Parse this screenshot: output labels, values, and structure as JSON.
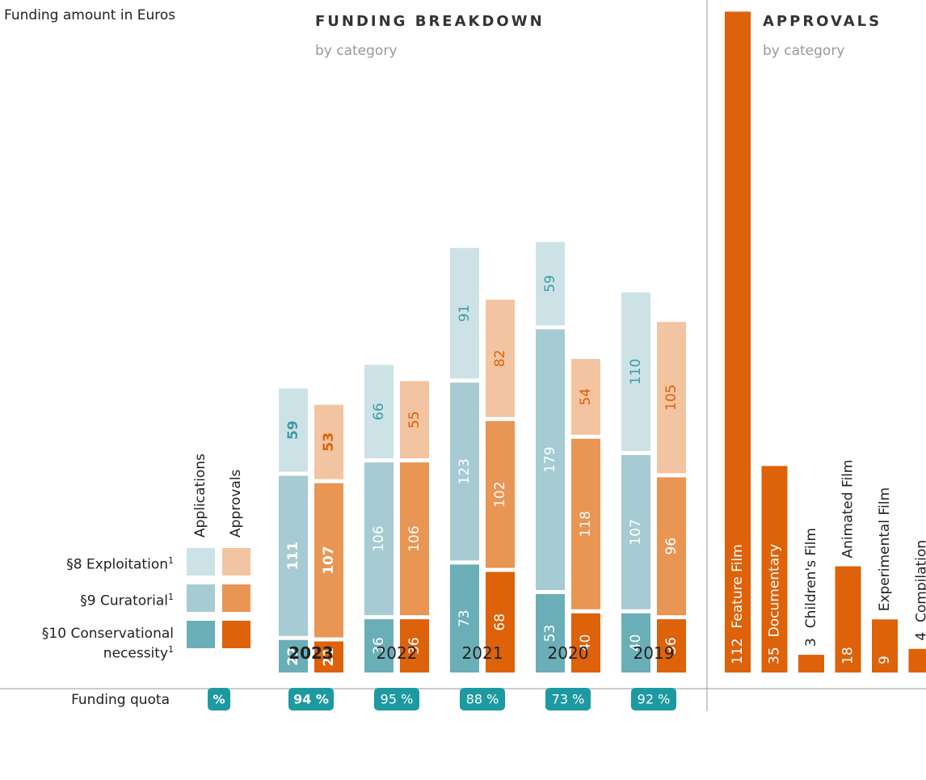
{
  "chart_data": [
    {
      "type": "stacked_bar",
      "y_label": "Funding amount in Euros",
      "title": "FUNDING BREAKDOWN",
      "subtitle": "by category",
      "categories": [
        "2023",
        "2022",
        "2021",
        "2020",
        "2019"
      ],
      "levels": [
        {
          "name": "§10 Conservational necessity",
          "note": "1"
        },
        {
          "name": "§9 Curatorial",
          "note": "1"
        },
        {
          "name": "§8 Exploitation",
          "note": "1"
        }
      ],
      "series": [
        {
          "name": "Applications",
          "colors": [
            "#6aafb8",
            "#a6cbd2",
            "#cde2e6"
          ],
          "text_color": "#3b9ba6",
          "stacks": [
            [
              22,
              36,
              73,
              53,
              40
            ],
            [
              111,
              106,
              123,
              179,
              107
            ],
            [
              59,
              66,
              91,
              59,
              110
            ]
          ]
        },
        {
          "name": "Approvals",
          "colors": [
            "#dd6209",
            "#e99554",
            "#f3c4a1"
          ],
          "text_color": "#dd6209",
          "stacks": [
            [
              21,
              36,
              68,
              40,
              36
            ],
            [
              107,
              106,
              102,
              118,
              96
            ],
            [
              53,
              55,
              82,
              54,
              105
            ]
          ]
        }
      ],
      "quota": {
        "label": "Funding quota",
        "unit": "%",
        "color": "#1d9aa1",
        "values": [
          94,
          95,
          88,
          73,
          92
        ],
        "value_labels": [
          "94 %",
          "95 %",
          "88 %",
          "73 %",
          "92 %"
        ]
      }
    },
    {
      "type": "bar",
      "title": "APPROVALS",
      "subtitle": "by category",
      "categories": [
        "Feature Film",
        "Documentary",
        "Children's Film",
        "Animated Film",
        "Experimental Film",
        "Compilation"
      ],
      "values": [
        112,
        35,
        3,
        18,
        9,
        4
      ],
      "color": "#dd6209"
    }
  ]
}
